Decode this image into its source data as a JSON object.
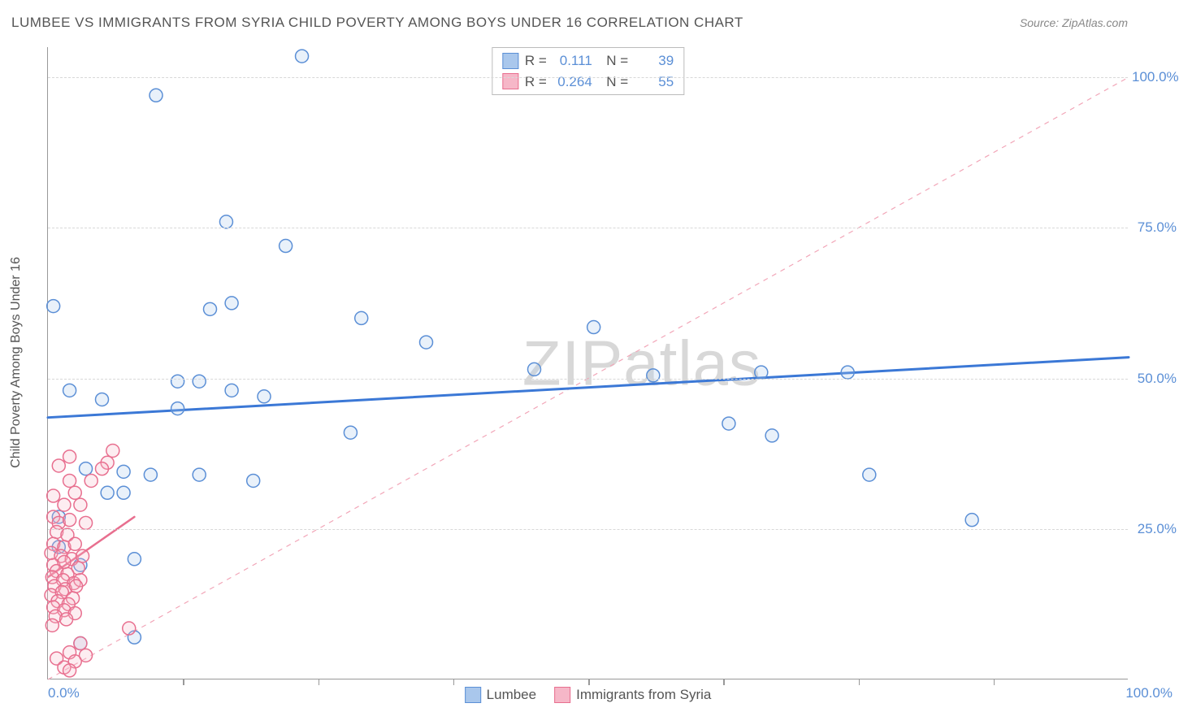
{
  "title": "LUMBEE VS IMMIGRANTS FROM SYRIA CHILD POVERTY AMONG BOYS UNDER 16 CORRELATION CHART",
  "source": "Source: ZipAtlas.com",
  "watermark": "ZIPatlas",
  "y_axis_label": "Child Poverty Among Boys Under 16",
  "chart": {
    "type": "scatter",
    "xlim": [
      0,
      100
    ],
    "ylim": [
      0,
      105
    ],
    "y_ticks": [
      25,
      50,
      75,
      100
    ],
    "y_tick_labels": [
      "25.0%",
      "50.0%",
      "75.0%",
      "100.0%"
    ],
    "x_tick_min_label": "0.0%",
    "x_tick_max_label": "100.0%",
    "x_tick_marks": [
      12.5,
      25,
      37.5,
      50,
      62.5,
      75,
      87.5
    ],
    "background_color": "#ffffff",
    "grid_color": "#d8d8d8",
    "marker_radius": 8,
    "marker_stroke_width": 1.5,
    "marker_fill_opacity": 0.25,
    "diagonal": {
      "color": "#f2a6b8",
      "dash": "6,6",
      "width": 1.2
    },
    "series": [
      {
        "name": "Lumbee",
        "color_stroke": "#5b8fd6",
        "color_fill": "#a9c7ec",
        "trend": {
          "x1": 0,
          "y1": 43.5,
          "x2": 100,
          "y2": 53.5,
          "width": 3,
          "color": "#3b78d6"
        },
        "stats": {
          "R": "0.111",
          "N": "39"
        },
        "points": [
          [
            23.5,
            103.5
          ],
          [
            10,
            97
          ],
          [
            16.5,
            76
          ],
          [
            22,
            72
          ],
          [
            0.5,
            62
          ],
          [
            15,
            61.5
          ],
          [
            17,
            62.5
          ],
          [
            29,
            60
          ],
          [
            35,
            56
          ],
          [
            50.5,
            58.5
          ],
          [
            45,
            51.5
          ],
          [
            56,
            50.5
          ],
          [
            66,
            51
          ],
          [
            74,
            51
          ],
          [
            12,
            49.5
          ],
          [
            14,
            49.5
          ],
          [
            17,
            48
          ],
          [
            20,
            47
          ],
          [
            5,
            46.5
          ],
          [
            2,
            48
          ],
          [
            12,
            45
          ],
          [
            63,
            42.5
          ],
          [
            67,
            40.5
          ],
          [
            28,
            41
          ],
          [
            76,
            34
          ],
          [
            3.5,
            35
          ],
          [
            7,
            34.5
          ],
          [
            9.5,
            34
          ],
          [
            14,
            34
          ],
          [
            19,
            33
          ],
          [
            5.5,
            31
          ],
          [
            7,
            31
          ],
          [
            85.5,
            26.5
          ],
          [
            1,
            27
          ],
          [
            1,
            22
          ],
          [
            3,
            19
          ],
          [
            8,
            20
          ],
          [
            8,
            7
          ],
          [
            3,
            6
          ]
        ]
      },
      {
        "name": "Immigrants from Syria",
        "color_stroke": "#e86f8f",
        "color_fill": "#f6b7c8",
        "trend": {
          "x1": 0,
          "y1": 17,
          "x2": 8,
          "y2": 27,
          "width": 2.5,
          "color": "#e86f8f"
        },
        "stats": {
          "R": "0.264",
          "N": "55"
        },
        "points": [
          [
            6,
            38
          ],
          [
            5.5,
            36
          ],
          [
            5,
            35
          ],
          [
            2,
            37
          ],
          [
            1,
            35.5
          ],
          [
            2,
            33
          ],
          [
            4,
            33
          ],
          [
            2.5,
            31
          ],
          [
            0.5,
            30.5
          ],
          [
            1.5,
            29
          ],
          [
            3,
            29
          ],
          [
            0.5,
            27
          ],
          [
            1,
            26
          ],
          [
            2,
            26.5
          ],
          [
            3.5,
            26
          ],
          [
            0.8,
            24.5
          ],
          [
            1.8,
            24
          ],
          [
            0.5,
            22.5
          ],
          [
            1.5,
            22
          ],
          [
            2.5,
            22.5
          ],
          [
            0.3,
            21
          ],
          [
            1.2,
            20.5
          ],
          [
            2.2,
            20
          ],
          [
            3.2,
            20.5
          ],
          [
            0.5,
            19
          ],
          [
            1.5,
            19.5
          ],
          [
            2.8,
            18.5
          ],
          [
            0.8,
            18
          ],
          [
            1.8,
            17.5
          ],
          [
            0.4,
            17
          ],
          [
            1.4,
            16.5
          ],
          [
            2.4,
            16
          ],
          [
            3,
            16.5
          ],
          [
            0.6,
            15.5
          ],
          [
            1.6,
            15
          ],
          [
            2.6,
            15.5
          ],
          [
            0.3,
            14
          ],
          [
            1.3,
            14.5
          ],
          [
            2.3,
            13.5
          ],
          [
            0.9,
            13
          ],
          [
            1.9,
            12.5
          ],
          [
            0.5,
            12
          ],
          [
            1.5,
            11.5
          ],
          [
            2.5,
            11
          ],
          [
            0.7,
            10.5
          ],
          [
            1.7,
            10
          ],
          [
            0.4,
            9
          ],
          [
            7.5,
            8.5
          ],
          [
            3,
            6
          ],
          [
            2,
            4.5
          ],
          [
            3.5,
            4
          ],
          [
            0.8,
            3.5
          ],
          [
            2.5,
            3
          ],
          [
            1.5,
            2
          ],
          [
            2,
            1.5
          ]
        ]
      }
    ]
  },
  "bottom_legend": [
    {
      "label": "Lumbee",
      "stroke": "#5b8fd6",
      "fill": "#a9c7ec"
    },
    {
      "label": "Immigrants from Syria",
      "stroke": "#e86f8f",
      "fill": "#f6b7c8"
    }
  ]
}
